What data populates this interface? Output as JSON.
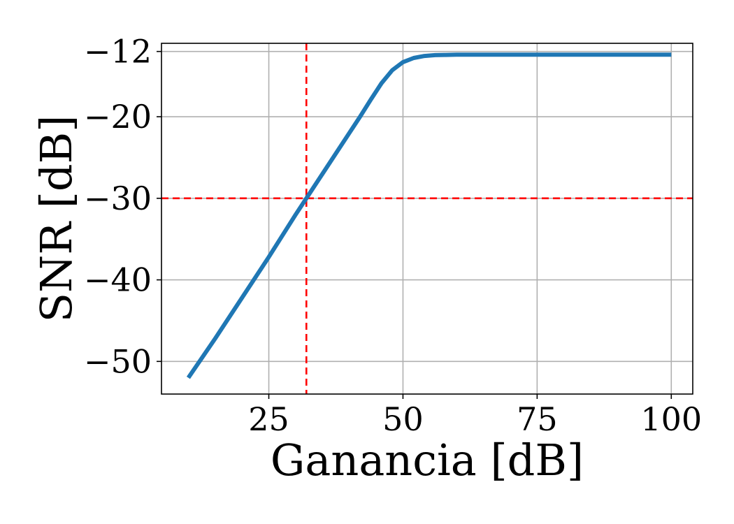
{
  "chart_data": {
    "type": "line",
    "xlabel": "Ganancia [dB]",
    "ylabel": "SNR [dB]",
    "xlim": [
      5,
      104
    ],
    "ylim": [
      -54,
      -11
    ],
    "x_ticks": [
      25,
      50,
      75,
      100
    ],
    "x_tick_labels": [
      "25",
      "50",
      "75",
      "100"
    ],
    "y_ticks": [
      -12,
      -20,
      -30,
      -40,
      -50
    ],
    "y_tick_labels": [
      "−12",
      "−20",
      "−30",
      "−40",
      "−50"
    ],
    "grid": true,
    "series": [
      {
        "color": "#1f77b4",
        "x": [
          10,
          15,
          20,
          25,
          30,
          32,
          35,
          40,
          42,
          44,
          46,
          48,
          50,
          52,
          54,
          56,
          58,
          60,
          65,
          70,
          75,
          80,
          90,
          100
        ],
        "y": [
          -52,
          -47.2,
          -42.2,
          -37.2,
          -32,
          -30,
          -27,
          -22,
          -20,
          -17.9,
          -15.9,
          -14.3,
          -13.3,
          -12.8,
          -12.55,
          -12.45,
          -12.42,
          -12.4,
          -12.4,
          -12.4,
          -12.4,
          -12.4,
          -12.4,
          -12.4
        ]
      }
    ],
    "reference_lines": {
      "vertical_x": 32,
      "horizontal_y": -30,
      "color": "#ff0000",
      "style": "dashed"
    }
  }
}
